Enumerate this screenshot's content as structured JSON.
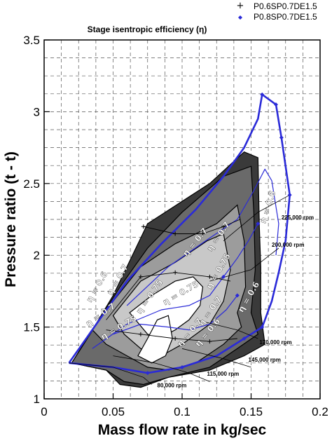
{
  "chart_data": {
    "type": "line",
    "title": "Stage isentropic efficiency (η)",
    "xlabel": "Mass flow rate in kg/sec",
    "ylabel": "Pressure ratio (t - t)",
    "xlim": [
      0,
      0.2
    ],
    "ylim": [
      1,
      3.5
    ],
    "grid": true,
    "legend_position": "top-right",
    "x_ticks": [
      "0",
      "0.05",
      "0.1",
      "0.15",
      "0.2"
    ],
    "y_ticks": [
      "1",
      "1.5",
      "2",
      "2.5",
      "3",
      "3.5"
    ],
    "legend": [
      {
        "label": "P0.6SP0.7DE1.5",
        "marker": "plus",
        "color": "#000000"
      },
      {
        "label": "P0.8SP0.7DE1.5",
        "marker": "diamond",
        "color": "#2a2ad8"
      }
    ],
    "colors": {
      "blue": "#2a2ad8",
      "black": "#000000"
    },
    "fills": [
      {
        "level": 0.5,
        "color": "#3a3a3a",
        "points": [
          [
            0.02,
            1.25
          ],
          [
            0.035,
            1.48
          ],
          [
            0.05,
            1.72
          ],
          [
            0.06,
            1.92
          ],
          [
            0.075,
            2.22
          ],
          [
            0.12,
            2.5
          ],
          [
            0.145,
            2.72
          ],
          [
            0.155,
            2.68
          ],
          [
            0.156,
            2.2
          ],
          [
            0.157,
            1.92
          ],
          [
            0.157,
            1.6
          ],
          [
            0.16,
            1.38
          ],
          [
            0.145,
            1.3
          ],
          [
            0.12,
            1.2
          ],
          [
            0.09,
            1.15
          ],
          [
            0.07,
            1.08
          ],
          [
            0.055,
            1.1
          ],
          [
            0.045,
            1.2
          ]
        ]
      },
      {
        "level": 0.55,
        "color": "#6a6a6a",
        "points": [
          [
            0.02,
            1.25
          ],
          [
            0.04,
            1.55
          ],
          [
            0.055,
            1.78
          ],
          [
            0.075,
            2.05
          ],
          [
            0.1,
            2.3
          ],
          [
            0.13,
            2.55
          ],
          [
            0.15,
            2.62
          ],
          [
            0.152,
            2.3
          ],
          [
            0.153,
            1.9
          ],
          [
            0.15,
            1.6
          ],
          [
            0.155,
            1.45
          ],
          [
            0.14,
            1.35
          ],
          [
            0.12,
            1.22
          ],
          [
            0.09,
            1.15
          ],
          [
            0.072,
            1.1
          ],
          [
            0.058,
            1.12
          ],
          [
            0.045,
            1.2
          ]
        ]
      },
      {
        "level": 0.6,
        "color": "#9c9c9c",
        "points": [
          [
            0.035,
            1.48
          ],
          [
            0.05,
            1.68
          ],
          [
            0.07,
            1.92
          ],
          [
            0.095,
            2.08
          ],
          [
            0.125,
            2.22
          ],
          [
            0.14,
            2.35
          ],
          [
            0.145,
            2.1
          ],
          [
            0.146,
            1.78
          ],
          [
            0.14,
            1.6
          ],
          [
            0.143,
            1.5
          ],
          [
            0.13,
            1.38
          ],
          [
            0.11,
            1.25
          ],
          [
            0.09,
            1.2
          ],
          [
            0.075,
            1.22
          ],
          [
            0.06,
            1.3
          ],
          [
            0.045,
            1.38
          ]
        ]
      },
      {
        "level": 0.7,
        "color": "#c8c8c8",
        "points": [
          [
            0.05,
            1.58
          ],
          [
            0.07,
            1.82
          ],
          [
            0.095,
            1.95
          ],
          [
            0.118,
            2.1
          ],
          [
            0.13,
            2.15
          ],
          [
            0.135,
            1.9
          ],
          [
            0.13,
            1.68
          ],
          [
            0.12,
            1.52
          ],
          [
            0.1,
            1.38
          ],
          [
            0.085,
            1.3
          ],
          [
            0.07,
            1.35
          ],
          [
            0.058,
            1.45
          ]
        ]
      },
      {
        "level": 0.75,
        "color": "#ffffff",
        "points": [
          [
            0.062,
            1.6
          ],
          [
            0.078,
            1.72
          ],
          [
            0.095,
            1.82
          ],
          [
            0.108,
            1.85
          ],
          [
            0.115,
            1.78
          ],
          [
            0.113,
            1.65
          ],
          [
            0.105,
            1.55
          ],
          [
            0.095,
            1.48
          ],
          [
            0.085,
            1.43
          ],
          [
            0.075,
            1.45
          ]
        ]
      },
      {
        "level": 0.75,
        "color": "#ffffff",
        "points": [
          [
            0.068,
            1.3
          ],
          [
            0.075,
            1.42
          ],
          [
            0.082,
            1.55
          ],
          [
            0.09,
            1.58
          ],
          [
            0.093,
            1.42
          ],
          [
            0.088,
            1.3
          ],
          [
            0.078,
            1.25
          ]
        ]
      }
    ],
    "lines": [
      {
        "style": "blue-thick",
        "points": [
          [
            0.018,
            1.25
          ],
          [
            0.05,
            1.22
          ],
          [
            0.075,
            1.18
          ],
          [
            0.1,
            1.22
          ],
          [
            0.125,
            1.3
          ],
          [
            0.145,
            1.42
          ],
          [
            0.158,
            1.5
          ],
          [
            0.16,
            1.55
          ]
        ]
      },
      {
        "style": "blue-thick",
        "points": [
          [
            0.018,
            1.25
          ],
          [
            0.04,
            1.55
          ],
          [
            0.06,
            1.82
          ],
          [
            0.085,
            2.08
          ],
          [
            0.11,
            2.32
          ],
          [
            0.13,
            2.55
          ],
          [
            0.145,
            2.75
          ],
          [
            0.155,
            2.95
          ],
          [
            0.158,
            3.12
          ],
          [
            0.168,
            3.05
          ],
          [
            0.172,
            2.82
          ],
          [
            0.178,
            2.42
          ],
          [
            0.175,
            2.1
          ],
          [
            0.17,
            1.88
          ],
          [
            0.165,
            1.68
          ],
          [
            0.16,
            1.55
          ]
        ]
      },
      {
        "style": "blue-thin",
        "points": [
          [
            0.06,
            1.65
          ],
          [
            0.09,
            1.92
          ],
          [
            0.12,
            2.12
          ],
          [
            0.14,
            2.25
          ],
          [
            0.152,
            2.45
          ],
          [
            0.16,
            2.6
          ],
          [
            0.165,
            2.52
          ],
          [
            0.17,
            2.22
          ],
          [
            0.168,
            2.0
          ]
        ]
      },
      {
        "style": "blue-thin",
        "points": [
          [
            0.035,
            1.35
          ],
          [
            0.06,
            1.52
          ],
          [
            0.085,
            1.62
          ],
          [
            0.105,
            1.65
          ],
          [
            0.12,
            1.72
          ],
          [
            0.13,
            1.85
          ],
          [
            0.14,
            1.98
          ],
          [
            0.148,
            2.1
          ],
          [
            0.155,
            2.22
          ]
        ]
      },
      {
        "style": "blue-thin",
        "points": [
          [
            0.05,
            1.45
          ],
          [
            0.07,
            1.52
          ],
          [
            0.09,
            1.5
          ],
          [
            0.105,
            1.48
          ],
          [
            0.12,
            1.52
          ],
          [
            0.132,
            1.62
          ],
          [
            0.14,
            1.72
          ]
        ]
      },
      {
        "style": "black-thin",
        "points": [
          [
            0.045,
            1.55
          ],
          [
            0.07,
            1.85
          ],
          [
            0.095,
            1.88
          ],
          [
            0.12,
            1.85
          ],
          [
            0.135,
            1.82
          ]
        ]
      },
      {
        "style": "black-thin",
        "points": [
          [
            0.072,
            2.2
          ],
          [
            0.095,
            2.15
          ],
          [
            0.115,
            2.15
          ],
          [
            0.13,
            2.2
          ],
          [
            0.142,
            2.25
          ]
        ]
      },
      {
        "style": "black-thin",
        "points": [
          [
            0.045,
            1.48
          ],
          [
            0.07,
            1.45
          ],
          [
            0.095,
            1.42
          ],
          [
            0.12,
            1.4
          ],
          [
            0.14,
            1.42
          ]
        ]
      }
    ],
    "speed_lines": [
      {
        "label": "80,000 rpm",
        "points": [
          [
            0.018,
            1.25
          ],
          [
            0.05,
            1.22
          ],
          [
            0.072,
            1.15
          ],
          [
            0.078,
            1.1
          ]
        ],
        "label_at": [
          0.082,
          1.08
        ]
      },
      {
        "label": "115,000 rpm",
        "points": [
          [
            0.05,
            1.3
          ],
          [
            0.08,
            1.25
          ],
          [
            0.105,
            1.18
          ],
          [
            0.12,
            1.12
          ]
        ],
        "label_at": [
          0.118,
          1.16
        ]
      },
      {
        "label": "145,000 rpm",
        "points": [
          [
            0.1,
            1.35
          ],
          [
            0.13,
            1.28
          ],
          [
            0.15,
            1.22
          ]
        ],
        "label_at": [
          0.148,
          1.26
        ]
      },
      {
        "label": "170,000 rpm",
        "points": [
          [
            0.11,
            1.55
          ],
          [
            0.14,
            1.48
          ],
          [
            0.155,
            1.42
          ]
        ],
        "label_at": [
          0.156,
          1.38
        ]
      },
      {
        "label": "200,000 rpm",
        "points": [
          [
            0.12,
            1.82
          ],
          [
            0.15,
            1.9
          ],
          [
            0.17,
            2.05
          ]
        ],
        "label_at": [
          0.165,
          2.06
        ]
      },
      {
        "label": "225,000 rpm",
        "points": [
          [
            0.13,
            2.1
          ],
          [
            0.155,
            2.3
          ],
          [
            0.178,
            2.42
          ]
        ],
        "label_at": [
          0.172,
          2.25
        ]
      }
    ],
    "black_markers": [
      [
        0.072,
        2.2
      ],
      [
        0.095,
        2.15
      ],
      [
        0.115,
        2.15
      ],
      [
        0.13,
        2.2
      ],
      [
        0.07,
        1.85
      ],
      [
        0.095,
        1.88
      ],
      [
        0.12,
        1.85
      ],
      [
        0.07,
        1.45
      ],
      [
        0.095,
        1.42
      ],
      [
        0.12,
        1.4
      ]
    ],
    "blue_markers": [
      [
        0.158,
        3.12
      ],
      [
        0.168,
        3.05
      ],
      [
        0.172,
        2.82
      ],
      [
        0.178,
        2.42
      ],
      [
        0.155,
        2.22
      ],
      [
        0.14,
        1.72
      ],
      [
        0.13,
        1.85
      ],
      [
        0.145,
        1.42
      ],
      [
        0.158,
        1.5
      ],
      [
        0.1,
        1.22
      ],
      [
        0.075,
        1.18
      ]
    ],
    "contour_labels": [
      {
        "text": "η = 0.6",
        "at": [
          0.04,
          1.77
        ],
        "angle": -60
      },
      {
        "text": "η = 0.7",
        "at": [
          0.055,
          1.82
        ],
        "angle": -60
      },
      {
        "text": "η = 0.75",
        "at": [
          0.078,
          1.7
        ],
        "angle": -55
      },
      {
        "text": "η = 0.75",
        "at": [
          0.1,
          1.72
        ],
        "angle": -30
      },
      {
        "text": "η = 0.7",
        "at": [
          0.042,
          1.57
        ],
        "angle": -35
      },
      {
        "text": "η = 0.75",
        "at": [
          0.055,
          1.48
        ],
        "angle": -30
      },
      {
        "text": "η = 0.7",
        "at": [
          0.128,
          2.12
        ],
        "angle": -55
      },
      {
        "text": "η = 0.75",
        "at": [
          0.128,
          1.88
        ],
        "angle": -60
      },
      {
        "text": "η = 0.7",
        "at": [
          0.122,
          1.6
        ],
        "angle": -55
      },
      {
        "text": "η = 0.6",
        "at": [
          0.15,
          1.7
        ],
        "angle": -60
      },
      {
        "text": "η = 0.6",
        "at": [
          0.12,
          1.45
        ],
        "angle": -50
      },
      {
        "text": "η = 0.7",
        "at": [
          0.107,
          1.45
        ],
        "angle": -50
      },
      {
        "text": "η = 0.6",
        "at": [
          0.164,
          2.33
        ],
        "angle": -72
      },
      {
        "text": "η = 0.7",
        "at": [
          0.111,
          2.08
        ],
        "angle": -50
      }
    ]
  }
}
